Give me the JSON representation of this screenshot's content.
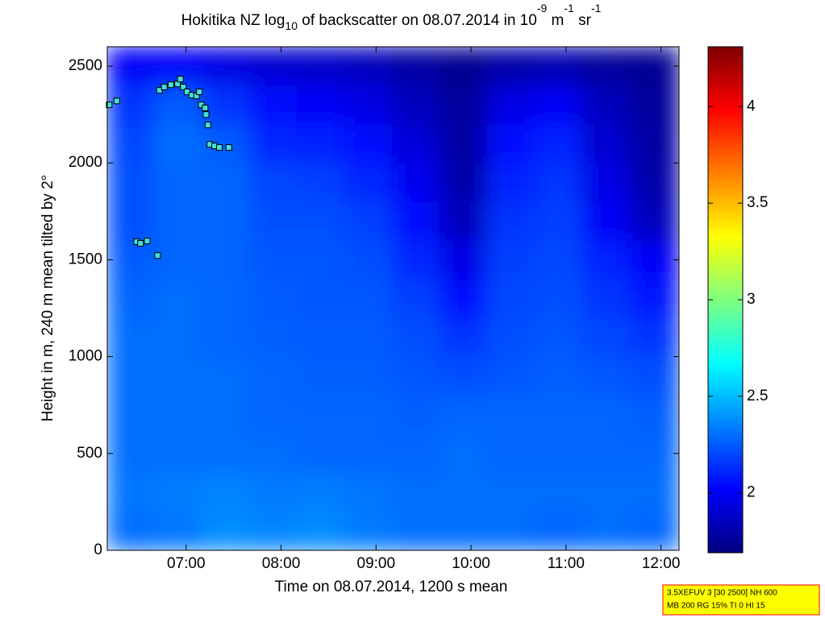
{
  "chart_data": {
    "type": "heatmap",
    "title_parts": [
      "Hokitika NZ log",
      "10",
      " of backscatter on 08.07.2014 in 10",
      "-9",
      " m",
      "-1",
      " sr",
      "-1"
    ],
    "x_label": "Time on 08.07.2014, 1200 s mean",
    "y_label": "Height in m, 240 m mean tilted by 2°",
    "xlim": [
      6.17,
      12.19
    ],
    "xticks": [
      {
        "value": 7,
        "label": "07:00"
      },
      {
        "value": 8,
        "label": "08:00"
      },
      {
        "value": 9,
        "label": "09:00"
      },
      {
        "value": 10,
        "label": "10:00"
      },
      {
        "value": 11,
        "label": "11:00"
      },
      {
        "value": 12,
        "label": "12:00"
      }
    ],
    "ylim": [
      0,
      2600
    ],
    "yticks": [
      0,
      500,
      1000,
      1500,
      2000,
      2500
    ],
    "x_edges": [
      6.17,
      6.67,
      7.17,
      7.67,
      8.17,
      8.67,
      9.17,
      9.67,
      10.17,
      10.67,
      11.17,
      11.67,
      12.19
    ],
    "y_edges": [
      0,
      200,
      400,
      600,
      800,
      1000,
      1200,
      1400,
      1600,
      1800,
      2000,
      2200,
      2400,
      2600
    ],
    "z": [
      [
        2.3,
        2.32,
        2.38,
        2.36,
        2.38,
        2.33,
        2.3,
        2.3,
        2.3,
        2.28,
        2.3,
        2.28
      ],
      [
        2.32,
        2.34,
        2.36,
        2.33,
        2.34,
        2.32,
        2.3,
        2.3,
        2.3,
        2.3,
        2.3,
        2.3
      ],
      [
        2.3,
        2.3,
        2.3,
        2.3,
        2.28,
        2.28,
        2.28,
        2.3,
        2.28,
        2.28,
        2.28,
        2.28
      ],
      [
        2.3,
        2.3,
        2.3,
        2.28,
        2.28,
        2.28,
        2.26,
        2.28,
        2.28,
        2.28,
        2.28,
        2.26
      ],
      [
        2.3,
        2.3,
        2.3,
        2.28,
        2.26,
        2.26,
        2.24,
        2.22,
        2.24,
        2.26,
        2.24,
        2.22
      ],
      [
        2.3,
        2.3,
        2.28,
        2.26,
        2.25,
        2.25,
        2.22,
        2.15,
        2.22,
        2.24,
        2.2,
        2.15
      ],
      [
        2.28,
        2.3,
        2.28,
        2.25,
        2.24,
        2.24,
        2.18,
        2.05,
        2.2,
        2.22,
        2.15,
        2.08
      ],
      [
        2.25,
        2.28,
        2.28,
        2.24,
        2.24,
        2.22,
        2.12,
        1.95,
        2.18,
        2.2,
        2.1,
        2.0
      ],
      [
        2.22,
        2.28,
        2.28,
        2.22,
        2.22,
        2.18,
        2.05,
        1.85,
        2.15,
        2.18,
        2.0,
        1.85
      ],
      [
        2.22,
        2.28,
        2.28,
        2.2,
        2.18,
        2.12,
        1.98,
        1.8,
        2.1,
        2.15,
        1.95,
        1.8
      ],
      [
        2.2,
        2.3,
        2.25,
        2.12,
        2.1,
        2.05,
        1.92,
        1.78,
        2.05,
        2.1,
        1.9,
        1.78
      ],
      [
        2.15,
        2.25,
        2.15,
        2.05,
        2.0,
        1.95,
        1.85,
        1.76,
        1.95,
        2.0,
        1.85,
        1.76
      ],
      [
        2.0,
        2.0,
        1.95,
        1.9,
        1.88,
        1.85,
        1.78,
        1.74,
        1.8,
        1.82,
        1.76,
        1.74
      ]
    ],
    "colorbar": {
      "lim": [
        1.69,
        4.31
      ],
      "ticks": [
        2,
        2.5,
        3,
        3.5,
        4
      ],
      "colormap": "jet"
    },
    "points": {
      "color": "#40e0d8",
      "x": [
        6.19,
        6.27,
        6.48,
        6.52,
        6.59,
        6.7,
        6.72,
        6.77,
        6.84,
        6.91,
        6.94,
        6.97,
        7.01,
        7.06,
        7.11,
        7.14,
        7.16,
        7.2,
        7.21,
        7.23,
        7.25,
        7.3,
        7.35,
        7.45
      ],
      "y": [
        2300,
        2320,
        1593,
        1585,
        1597,
        1522,
        2375,
        2392,
        2404,
        2408,
        2433,
        2392,
        2367,
        2350,
        2346,
        2367,
        2300,
        2284,
        2250,
        2196,
        2096,
        2088,
        2080,
        2080
      ]
    },
    "info_box": [
      "3.5XEFUV 3 [30 2500] NH 600",
      "MB 200 RG 15% TI 0 HI 15"
    ]
  }
}
